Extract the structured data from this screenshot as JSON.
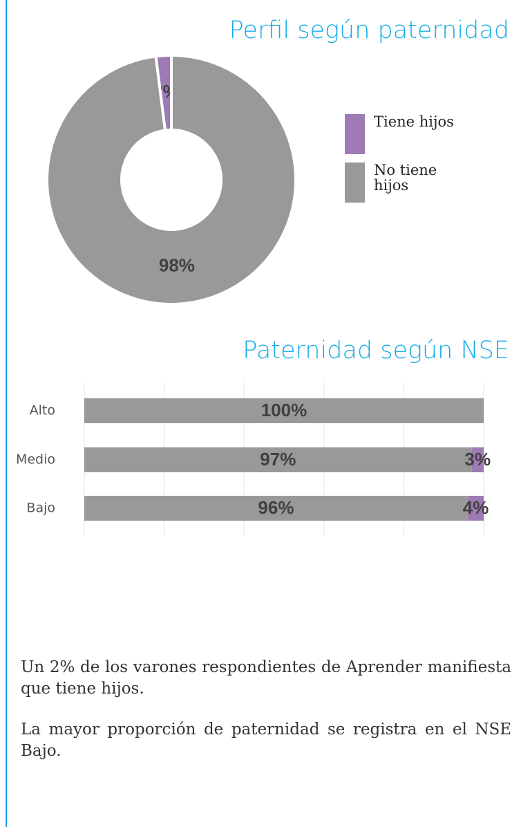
{
  "chart_data": [
    {
      "type": "pie",
      "title": "Perfil según paternidad",
      "categories": [
        "Tiene hijos",
        "No tiene hijos"
      ],
      "values": [
        2,
        98
      ],
      "value_labels": [
        "2%",
        "98%"
      ],
      "colors": [
        "#9e7bb5",
        "#999999"
      ],
      "donut": true,
      "legend": "right"
    },
    {
      "type": "bar",
      "orientation": "horizontal",
      "stacked": true,
      "title": "Paternidad según NSE",
      "categories": [
        "Alto",
        "Medio",
        "Bajo"
      ],
      "series": [
        {
          "color": "#999999",
          "values": [
            100,
            97,
            96
          ],
          "value_labels": [
            "100%",
            "97%",
            "96%"
          ]
        },
        {
          "color": "#9e7bb5",
          "values": [
            0,
            3,
            4
          ],
          "value_labels": [
            null,
            "3%",
            "4%"
          ]
        }
      ],
      "xlim": [
        0,
        100
      ],
      "xticks": [
        0,
        20,
        40,
        60,
        80,
        100
      ],
      "grid": true
    }
  ],
  "text": [
    "Un 2% de los varones respondientes de Aprender manifiesta que tiene hijos.",
    "La mayor proporción de paternidad se registra en el NSE Bajo."
  ]
}
